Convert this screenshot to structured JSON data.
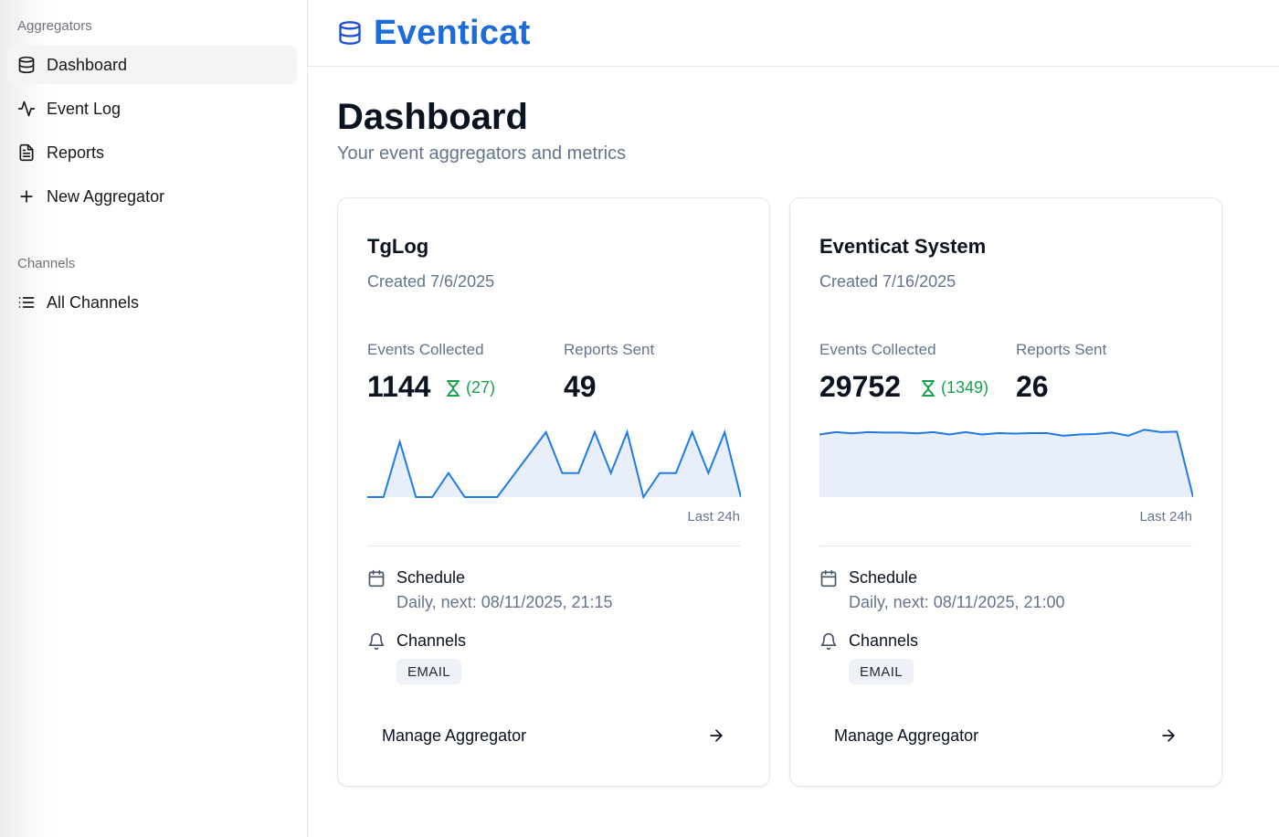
{
  "sidebar": {
    "sections": [
      {
        "title": "Aggregators",
        "items": [
          {
            "label": "Dashboard",
            "icon": "database-icon",
            "active": true
          },
          {
            "label": "Event Log",
            "icon": "activity-icon"
          },
          {
            "label": "Reports",
            "icon": "file-text-icon"
          },
          {
            "label": "New Aggregator",
            "icon": "plus-icon"
          }
        ]
      },
      {
        "title": "Channels",
        "items": [
          {
            "label": "All Channels",
            "icon": "list-icon"
          }
        ]
      }
    ]
  },
  "header": {
    "brand": "Eventicat",
    "brand_icon": "database-icon"
  },
  "page": {
    "title": "Dashboard",
    "subtitle": "Your event aggregators and metrics"
  },
  "colors": {
    "brand": "#1d6ad9",
    "chart_line": "#1e7be6",
    "chart_fill": "#e8effb",
    "pending": "#16a34a"
  },
  "cards": [
    {
      "name": "TgLog",
      "created": "Created 7/6/2025",
      "events_label": "Events Collected",
      "events_value": "1144",
      "events_pending": "(27)",
      "reports_label": "Reports Sent",
      "reports_value": "49",
      "spark_caption": "Last 24h",
      "schedule_title": "Schedule",
      "schedule_detail": "Daily, next: 08/11/2025, 21:15",
      "channels_title": "Channels",
      "channels": [
        "EMAIL"
      ],
      "manage_label": "Manage Aggregator"
    },
    {
      "name": "Eventicat System",
      "created": "Created 7/16/2025",
      "events_label": "Events Collected",
      "events_value": "29752",
      "events_pending": "(1349)",
      "reports_label": "Reports Sent",
      "reports_value": "26",
      "spark_caption": "Last 24h",
      "schedule_title": "Schedule",
      "schedule_detail": "Daily, next: 08/11/2025, 21:00",
      "channels_title": "Channels",
      "channels": [
        "EMAIL"
      ],
      "manage_label": "Manage Aggregator"
    }
  ],
  "chart_data": [
    {
      "type": "area",
      "title": "",
      "x": [
        1,
        2,
        3,
        4,
        5,
        6,
        7,
        8,
        9,
        10,
        11,
        12,
        13,
        14,
        15,
        16,
        17,
        18,
        19,
        20,
        21,
        22,
        23,
        24
      ],
      "values": [
        0,
        0,
        2.3,
        0,
        0,
        1,
        0,
        0,
        0,
        0.9,
        1.8,
        2.7,
        1,
        1,
        2.7,
        1,
        2.7,
        0,
        1,
        1,
        2.7,
        1,
        2.7,
        0
      ],
      "ylim": [
        0,
        3
      ]
    },
    {
      "type": "area",
      "title": "",
      "x": [
        1,
        2,
        3,
        4,
        5,
        6,
        7,
        8,
        9,
        10,
        11,
        12,
        13,
        14,
        15,
        16,
        17,
        18,
        19,
        20,
        21,
        22,
        23,
        24
      ],
      "values": [
        2.6,
        2.7,
        2.65,
        2.7,
        2.68,
        2.68,
        2.65,
        2.7,
        2.6,
        2.7,
        2.6,
        2.66,
        2.64,
        2.66,
        2.66,
        2.55,
        2.6,
        2.62,
        2.68,
        2.55,
        2.8,
        2.7,
        2.72,
        0
      ],
      "ylim": [
        0,
        3
      ]
    }
  ]
}
